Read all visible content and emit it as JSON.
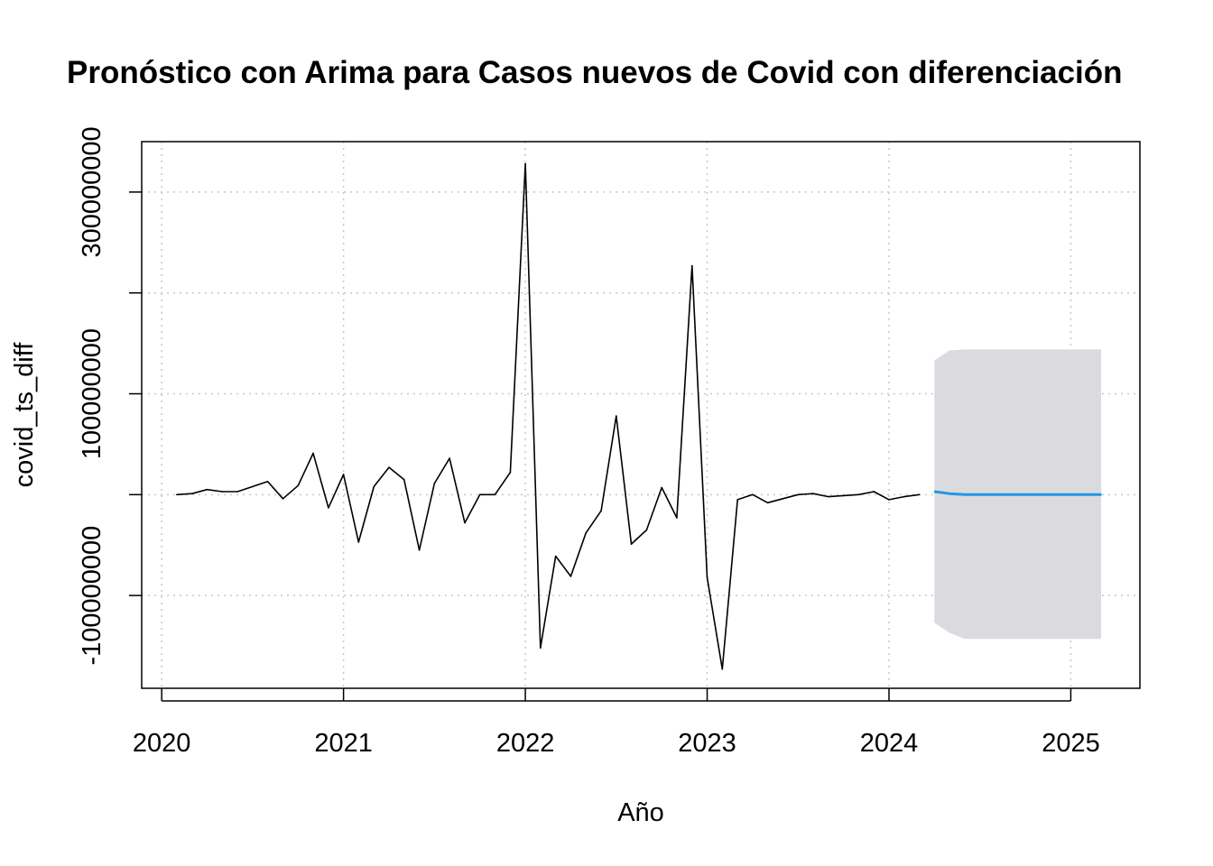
{
  "chart_data": {
    "type": "line",
    "title": "Pronóstico con Arima para Casos nuevos de Covid con diferenciación",
    "xlabel": "Año",
    "ylabel": "covid_ts_diff",
    "xlim": [
      2019.89,
      2025.38
    ],
    "ylim": [
      -192000000,
      350000000
    ],
    "x_ticks": [
      2020,
      2021,
      2022,
      2023,
      2024,
      2025
    ],
    "x_tick_labels": [
      "2020",
      "2021",
      "2022",
      "2023",
      "2024",
      "2025"
    ],
    "y_ticks": [
      -100000000,
      0,
      100000000,
      200000000,
      300000000
    ],
    "y_tick_labels": [
      "-100000000",
      "",
      "100000000",
      "",
      "300000000"
    ],
    "grid": true,
    "series": [
      {
        "kind": "observed",
        "color": "#000000",
        "x": [
          2020.083,
          2020.167,
          2020.25,
          2020.333,
          2020.417,
          2020.5,
          2020.583,
          2020.667,
          2020.75,
          2020.833,
          2020.917,
          2021.0,
          2021.083,
          2021.167,
          2021.25,
          2021.333,
          2021.417,
          2021.5,
          2021.583,
          2021.667,
          2021.75,
          2021.833,
          2021.917,
          2022.0,
          2022.083,
          2022.167,
          2022.25,
          2022.333,
          2022.417,
          2022.5,
          2022.583,
          2022.667,
          2022.75,
          2022.833,
          2022.917,
          2023.0,
          2023.083,
          2023.167,
          2023.25,
          2023.333,
          2023.417,
          2023.5,
          2023.583,
          2023.667,
          2023.75,
          2023.833,
          2023.917,
          2024.0,
          2024.083,
          2024.167
        ],
        "y": [
          0,
          1000000,
          5000000,
          3000000,
          3000000,
          8000000,
          13000000,
          -4000000,
          9000000,
          41000000,
          -13000000,
          20000000,
          -47000000,
          8000000,
          27000000,
          15000000,
          -55000000,
          11000000,
          36000000,
          -28000000,
          0,
          0,
          22000000,
          328000000,
          -152000000,
          -61000000,
          -81000000,
          -38000000,
          -16000000,
          78000000,
          -49000000,
          -35000000,
          7000000,
          -23000000,
          227000000,
          -82000000,
          -173000000,
          -5000000,
          0,
          -8000000,
          -4000000,
          0,
          1000000,
          -2000000,
          -1000000,
          0,
          3000000,
          -5000000,
          -2000000,
          0
        ]
      },
      {
        "kind": "forecast",
        "color": "#2297e6",
        "x": [
          2024.25,
          2024.333,
          2024.417,
          2024.5,
          2024.583,
          2024.667,
          2024.75,
          2024.833,
          2024.917,
          2025.0,
          2025.083,
          2025.167
        ],
        "y": [
          3000000,
          1000000,
          0,
          0,
          0,
          0,
          0,
          0,
          0,
          0,
          0,
          0
        ]
      }
    ],
    "band": {
      "color": "#dbdbdf",
      "x": [
        2024.25,
        2024.333,
        2024.417,
        2024.5,
        2024.583,
        2024.667,
        2024.75,
        2024.833,
        2024.917,
        2025.0,
        2025.083,
        2025.167
      ],
      "lower": [
        -127000000,
        -137000000,
        -143000000,
        -143000000,
        -143000000,
        -143000000,
        -143000000,
        -143000000,
        -143000000,
        -143000000,
        -143000000,
        -143000000
      ],
      "upper": [
        133000000,
        143000000,
        144000000,
        144000000,
        144000000,
        144000000,
        144000000,
        144000000,
        144000000,
        144000000,
        144000000,
        144000000
      ]
    }
  }
}
